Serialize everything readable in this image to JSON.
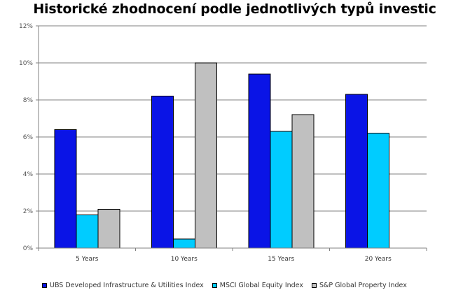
{
  "chart_data": {
    "type": "bar",
    "title": "Historické zhodnocení podle jednotlivých typů investic",
    "categories": [
      "5 Years",
      "10 Years",
      "15 Years",
      "20 Years"
    ],
    "series": [
      {
        "name": "UBS Developed Infrastructure & Utilities Index",
        "color": "#0a14e6",
        "values": [
          6.4,
          8.2,
          9.4,
          8.3
        ]
      },
      {
        "name": "MSCI Global Equity Index",
        "color": "#00ccff",
        "values": [
          1.8,
          0.5,
          6.3,
          6.2
        ]
      },
      {
        "name": "S&P Global Property Index",
        "color": "#c0c0c0",
        "values": [
          2.1,
          10.0,
          7.2,
          null
        ]
      }
    ],
    "yticks": [
      "0%",
      "2%",
      "4%",
      "6%",
      "8%",
      "10%",
      "12%"
    ],
    "ylim": [
      0,
      12
    ],
    "grid": true,
    "legend_position": "bottom"
  }
}
